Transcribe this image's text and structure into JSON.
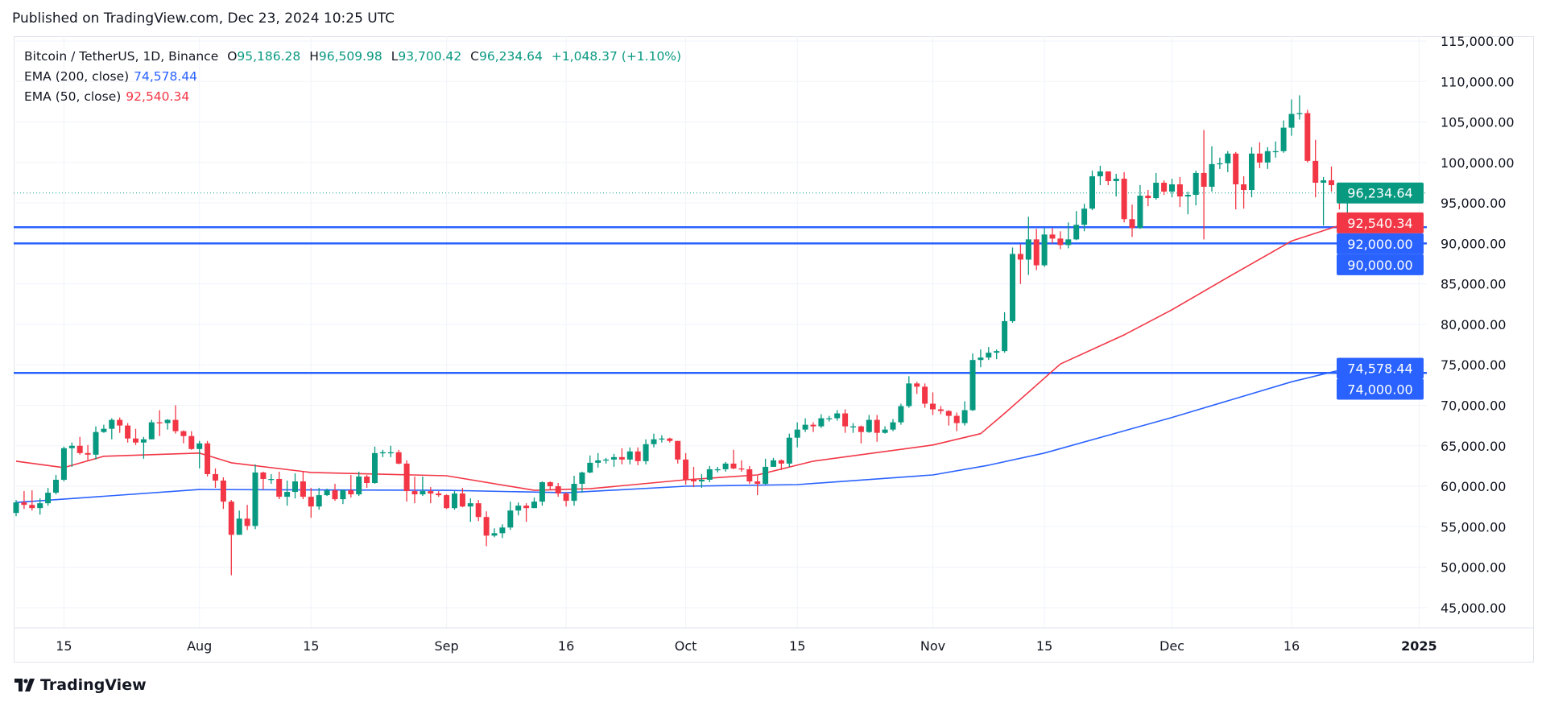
{
  "header": {
    "published": "Published on TradingView.com, Dec 23, 2024 10:25 UTC"
  },
  "legend": {
    "symbol": "Bitcoin / TetherUS, 1D, Binance",
    "o_label": "O",
    "o": "95,186.28",
    "h_label": "H",
    "h": "96,509.98",
    "l_label": "L",
    "l": "93,700.42",
    "c_label": "C",
    "c": "96,234.64",
    "change": "+1,048.37 (+1.10%)",
    "ema200_label": "EMA (200, close)",
    "ema200_value": "74,578.44",
    "ema50_label": "EMA (50, close)",
    "ema50_value": "92,540.34"
  },
  "footer": {
    "brand": "TradingView"
  },
  "colors": {
    "up": "#089981",
    "down": "#f23645",
    "ema200": "#2962ff",
    "ema50": "#f23645",
    "level_line": "#2962ff"
  },
  "chart_data": {
    "type": "candlestick",
    "symbol": "BTCUSDT",
    "interval": "1D",
    "first_date": "2024-07-09",
    "ylim": [
      42500,
      115600
    ],
    "grid": true,
    "y_ticks": [
      115000,
      110000,
      105000,
      100000,
      95000,
      90000,
      85000,
      80000,
      75000,
      70000,
      65000,
      60000,
      55000,
      50000,
      45000
    ],
    "y_tick_labels": [
      "115,000.00",
      "110,000.00",
      "105,000.00",
      "100,000.00",
      "95,000.00",
      "90,000.00",
      "85,000.00",
      "80,000.00",
      "75,000.00",
      "70,000.00",
      "65,000.00",
      "60,000.00",
      "55,000.00",
      "50,000.00",
      "45,000.00"
    ],
    "x_ticks": [
      {
        "label": "15",
        "date": "2024-07-15"
      },
      {
        "label": "Aug",
        "date": "2024-08-01"
      },
      {
        "label": "15",
        "date": "2024-08-15"
      },
      {
        "label": "Sep",
        "date": "2024-09-01"
      },
      {
        "label": "16",
        "date": "2024-09-16"
      },
      {
        "label": "Oct",
        "date": "2024-10-01"
      },
      {
        "label": "15",
        "date": "2024-10-15"
      },
      {
        "label": "Nov",
        "date": "2024-11-01"
      },
      {
        "label": "15",
        "date": "2024-11-15"
      },
      {
        "label": "Dec",
        "date": "2024-12-01"
      },
      {
        "label": "16",
        "date": "2024-12-16"
      },
      {
        "label": "2025",
        "date": "2025-01-01"
      }
    ],
    "ohlc_columns": [
      "open",
      "high",
      "low",
      "close"
    ],
    "candles": [
      [
        56700,
        58300,
        56300,
        58000
      ],
      [
        58000,
        59400,
        57200,
        57700
      ],
      [
        57700,
        59500,
        57000,
        57300
      ],
      [
        57300,
        58500,
        56500,
        57900
      ],
      [
        57900,
        59800,
        57600,
        59200
      ],
      [
        59200,
        61400,
        59000,
        60800
      ],
      [
        60800,
        64900,
        60600,
        64700
      ],
      [
        64700,
        65400,
        62400,
        65000
      ],
      [
        65000,
        66100,
        63900,
        64100
      ],
      [
        64100,
        65100,
        63200,
        63900
      ],
      [
        63900,
        67400,
        63300,
        66700
      ],
      [
        66700,
        67600,
        66600,
        67100
      ],
      [
        67100,
        68400,
        65800,
        68200
      ],
      [
        68200,
        68500,
        66600,
        67500
      ],
      [
        67500,
        67800,
        65400,
        65900
      ],
      [
        65900,
        67100,
        65100,
        65400
      ],
      [
        65400,
        66100,
        63400,
        65800
      ],
      [
        65800,
        68200,
        65800,
        67900
      ],
      [
        67900,
        69400,
        66200,
        67800
      ],
      [
        67800,
        68300,
        67000,
        68200
      ],
      [
        68200,
        70000,
        66500,
        66800
      ],
      [
        66800,
        66900,
        65300,
        66200
      ],
      [
        66200,
        66800,
        64500,
        64600
      ],
      [
        64600,
        65600,
        62200,
        65300
      ],
      [
        65300,
        65600,
        61200,
        61500
      ],
      [
        61500,
        62200,
        59800,
        60700
      ],
      [
        60700,
        61100,
        57200,
        58100
      ],
      [
        58100,
        58300,
        49000,
        54000
      ],
      [
        54000,
        57000,
        54000,
        56000
      ],
      [
        56000,
        57700,
        54600,
        55100
      ],
      [
        55100,
        62700,
        54700,
        61700
      ],
      [
        61700,
        61800,
        59600,
        60900
      ],
      [
        60900,
        61500,
        60300,
        60900
      ],
      [
        60900,
        61800,
        58400,
        58700
      ],
      [
        58700,
        60700,
        57600,
        59300
      ],
      [
        59300,
        61600,
        58500,
        60600
      ],
      [
        60600,
        61800,
        58400,
        58700
      ],
      [
        58700,
        59800,
        56100,
        57500
      ],
      [
        57500,
        59800,
        57100,
        58900
      ],
      [
        58900,
        59700,
        58800,
        59500
      ],
      [
        59500,
        60300,
        58200,
        58400
      ],
      [
        58400,
        59600,
        57800,
        59500
      ],
      [
        59500,
        61400,
        58600,
        59000
      ],
      [
        59000,
        61800,
        58800,
        61200
      ],
      [
        61200,
        61400,
        59800,
        60400
      ],
      [
        60400,
        64900,
        60300,
        64100
      ],
      [
        64100,
        64500,
        63600,
        64200
      ],
      [
        64200,
        65000,
        63600,
        64200
      ],
      [
        64200,
        64500,
        62700,
        62800
      ],
      [
        62800,
        63200,
        58100,
        59400
      ],
      [
        59400,
        61200,
        57900,
        59000
      ],
      [
        59000,
        61200,
        58800,
        59400
      ],
      [
        59400,
        59900,
        57900,
        59100
      ],
      [
        59100,
        59400,
        58700,
        58900
      ],
      [
        58900,
        59000,
        57200,
        57300
      ],
      [
        57300,
        59400,
        57100,
        59100
      ],
      [
        59100,
        59800,
        57400,
        57500
      ],
      [
        57500,
        58500,
        55600,
        57900
      ],
      [
        57900,
        58300,
        55700,
        56200
      ],
      [
        56200,
        56900,
        52600,
        53900
      ],
      [
        53900,
        54800,
        53700,
        54200
      ],
      [
        54200,
        55300,
        53600,
        54900
      ],
      [
        54900,
        58100,
        54600,
        57000
      ],
      [
        57000,
        58000,
        56400,
        57600
      ],
      [
        57600,
        57900,
        55600,
        57300
      ],
      [
        57300,
        58600,
        57300,
        58100
      ],
      [
        58100,
        60600,
        57600,
        60500
      ],
      [
        60500,
        60600,
        59600,
        60000
      ],
      [
        60000,
        60400,
        58700,
        59100
      ],
      [
        59100,
        59200,
        57500,
        58200
      ],
      [
        58200,
        61300,
        57600,
        60300
      ],
      [
        60300,
        61800,
        59200,
        61700
      ],
      [
        61700,
        63800,
        61600,
        62900
      ],
      [
        62900,
        64100,
        62300,
        63200
      ],
      [
        63200,
        63500,
        62800,
        63300
      ],
      [
        63300,
        64000,
        62400,
        63600
      ],
      [
        63600,
        64700,
        62700,
        63300
      ],
      [
        63300,
        64800,
        62700,
        64300
      ],
      [
        64300,
        64800,
        62600,
        63100
      ],
      [
        63100,
        65800,
        62700,
        65200
      ],
      [
        65200,
        66500,
        64800,
        65800
      ],
      [
        65800,
        66300,
        65400,
        65900
      ],
      [
        65900,
        66000,
        65400,
        65600
      ],
      [
        65600,
        65600,
        62800,
        63300
      ],
      [
        63300,
        64100,
        60200,
        60800
      ],
      [
        60800,
        62400,
        59900,
        60600
      ],
      [
        60600,
        61500,
        59800,
        60800
      ],
      [
        60800,
        62500,
        60500,
        62100
      ],
      [
        62100,
        62400,
        61700,
        62100
      ],
      [
        62100,
        63000,
        61800,
        62800
      ],
      [
        62800,
        64500,
        62100,
        62200
      ],
      [
        62200,
        63200,
        61800,
        62100
      ],
      [
        62100,
        62500,
        60300,
        60600
      ],
      [
        60600,
        61300,
        58900,
        60300
      ],
      [
        60300,
        63400,
        60200,
        62400
      ],
      [
        62400,
        63500,
        62400,
        63200
      ],
      [
        63200,
        63300,
        62000,
        62800
      ],
      [
        62800,
        66500,
        62400,
        66000
      ],
      [
        66000,
        67900,
        64800,
        67000
      ],
      [
        67000,
        68400,
        66700,
        67600
      ],
      [
        67600,
        67900,
        66700,
        67400
      ],
      [
        67400,
        68900,
        67200,
        68400
      ],
      [
        68400,
        68700,
        68000,
        68400
      ],
      [
        68400,
        69400,
        68100,
        69000
      ],
      [
        69000,
        69500,
        66600,
        67400
      ],
      [
        67400,
        67800,
        66600,
        67400
      ],
      [
        67400,
        67500,
        65300,
        66700
      ],
      [
        66700,
        68800,
        66600,
        68200
      ],
      [
        68200,
        68800,
        65500,
        66600
      ],
      [
        66600,
        67400,
        66500,
        67000
      ],
      [
        67000,
        68300,
        66800,
        67900
      ],
      [
        67900,
        70200,
        67600,
        69900
      ],
      [
        69900,
        73600,
        69700,
        72700
      ],
      [
        72700,
        72900,
        71400,
        72300
      ],
      [
        72300,
        72700,
        69700,
        70200
      ],
      [
        70200,
        71600,
        68800,
        69500
      ],
      [
        69500,
        69900,
        68900,
        69300
      ],
      [
        69300,
        69400,
        67500,
        68700
      ],
      [
        68700,
        69100,
        66800,
        67800
      ],
      [
        67800,
        70500,
        67500,
        69400
      ],
      [
        69400,
        76400,
        69300,
        75600
      ],
      [
        75600,
        76900,
        74700,
        75900
      ],
      [
        75900,
        77200,
        75600,
        76500
      ],
      [
        76500,
        76900,
        75700,
        76700
      ],
      [
        76700,
        81500,
        76500,
        80400
      ],
      [
        80400,
        89500,
        80200,
        88700
      ],
      [
        88700,
        89900,
        85000,
        88000
      ],
      [
        88000,
        93300,
        86100,
        90500
      ],
      [
        90500,
        91800,
        86700,
        87300
      ],
      [
        87300,
        91900,
        87100,
        91100
      ],
      [
        91100,
        91900,
        90000,
        90600
      ],
      [
        90600,
        91500,
        89300,
        89800
      ],
      [
        89800,
        92600,
        89400,
        90500
      ],
      [
        90500,
        94000,
        90400,
        92300
      ],
      [
        92300,
        94900,
        91500,
        94300
      ],
      [
        94300,
        99000,
        94100,
        98300
      ],
      [
        98300,
        99600,
        97200,
        98900
      ],
      [
        98900,
        98900,
        97200,
        97700
      ],
      [
        97700,
        98600,
        95800,
        98000
      ],
      [
        98000,
        98800,
        92600,
        93000
      ],
      [
        93000,
        94800,
        90800,
        91900
      ],
      [
        91900,
        97200,
        91800,
        95900
      ],
      [
        95900,
        96600,
        94600,
        95600
      ],
      [
        95600,
        98700,
        95400,
        97500
      ],
      [
        97500,
        97800,
        96000,
        96400
      ],
      [
        96400,
        98000,
        95700,
        97300
      ],
      [
        97300,
        98200,
        94500,
        95800
      ],
      [
        95800,
        96400,
        93600,
        96000
      ],
      [
        96000,
        99000,
        94700,
        98700
      ],
      [
        98700,
        104000,
        90500,
        97000
      ],
      [
        97000,
        102000,
        96400,
        99800
      ],
      [
        99800,
        100600,
        99200,
        99900
      ],
      [
        99900,
        101400,
        98800,
        101100
      ],
      [
        101100,
        101300,
        94200,
        97300
      ],
      [
        97300,
        98300,
        94300,
        96600
      ],
      [
        96600,
        101900,
        95700,
        101100
      ],
      [
        101100,
        102500,
        99300,
        100000
      ],
      [
        100000,
        101900,
        99200,
        101400
      ],
      [
        101400,
        102600,
        100600,
        101400
      ],
      [
        101400,
        105200,
        101200,
        104300
      ],
      [
        104300,
        107800,
        103300,
        106000
      ],
      [
        106000,
        108300,
        105300,
        106100
      ],
      [
        106100,
        106500,
        100000,
        100200
      ],
      [
        100200,
        102800,
        95700,
        97500
      ],
      [
        97500,
        98200,
        92200,
        97800
      ],
      [
        97800,
        99500,
        96400,
        97200
      ],
      [
        97200,
        97400,
        94200,
        95186.28
      ],
      [
        95186.28,
        96509.98,
        93700.42,
        96234.64
      ]
    ],
    "ema200": {
      "label": "EMA (200, close)",
      "points": [
        {
          "date": "2024-07-09",
          "value": 58000
        },
        {
          "date": "2024-08-01",
          "value": 59600
        },
        {
          "date": "2024-09-01",
          "value": 59500
        },
        {
          "date": "2024-09-16",
          "value": 59200
        },
        {
          "date": "2024-10-01",
          "value": 60000
        },
        {
          "date": "2024-10-15",
          "value": 60200
        },
        {
          "date": "2024-11-01",
          "value": 61400
        },
        {
          "date": "2024-11-08",
          "value": 62600
        },
        {
          "date": "2024-11-15",
          "value": 64100
        },
        {
          "date": "2024-12-01",
          "value": 68500
        },
        {
          "date": "2024-12-16",
          "value": 72900
        },
        {
          "date": "2024-12-23",
          "value": 74578.44
        }
      ]
    },
    "ema50": {
      "label": "EMA (50, close)",
      "points": [
        {
          "date": "2024-07-09",
          "value": 63100
        },
        {
          "date": "2024-07-15",
          "value": 62300
        },
        {
          "date": "2024-07-20",
          "value": 63700
        },
        {
          "date": "2024-08-01",
          "value": 64100
        },
        {
          "date": "2024-08-05",
          "value": 62900
        },
        {
          "date": "2024-08-15",
          "value": 61700
        },
        {
          "date": "2024-09-01",
          "value": 61300
        },
        {
          "date": "2024-09-12",
          "value": 59500
        },
        {
          "date": "2024-09-19",
          "value": 59700
        },
        {
          "date": "2024-10-01",
          "value": 60800
        },
        {
          "date": "2024-10-10",
          "value": 61400
        },
        {
          "date": "2024-10-17",
          "value": 63100
        },
        {
          "date": "2024-11-01",
          "value": 65100
        },
        {
          "date": "2024-11-07",
          "value": 66500
        },
        {
          "date": "2024-11-10",
          "value": 69000
        },
        {
          "date": "2024-11-17",
          "value": 75100
        },
        {
          "date": "2024-11-25",
          "value": 78700
        },
        {
          "date": "2024-12-01",
          "value": 81800
        },
        {
          "date": "2024-12-08",
          "value": 85800
        },
        {
          "date": "2024-12-16",
          "value": 90300
        },
        {
          "date": "2024-12-23",
          "value": 92540.34
        }
      ]
    },
    "horizontal_levels": [
      92000,
      90000,
      74000
    ],
    "last_price": 96234.64,
    "price_badges": [
      {
        "value": 96234.64,
        "label": "96,234.64",
        "color": "#089981"
      },
      {
        "value": 92540.34,
        "label": "92,540.34",
        "color": "#f23645"
      },
      {
        "value": 92000,
        "label": "92,000.00",
        "color": "#2962ff"
      },
      {
        "value": 90000,
        "label": "90,000.00",
        "color": "#2962ff"
      },
      {
        "value": 74578.44,
        "label": "74,578.44",
        "color": "#2962ff"
      },
      {
        "value": 74000,
        "label": "74,000.00",
        "color": "#2962ff"
      }
    ]
  }
}
